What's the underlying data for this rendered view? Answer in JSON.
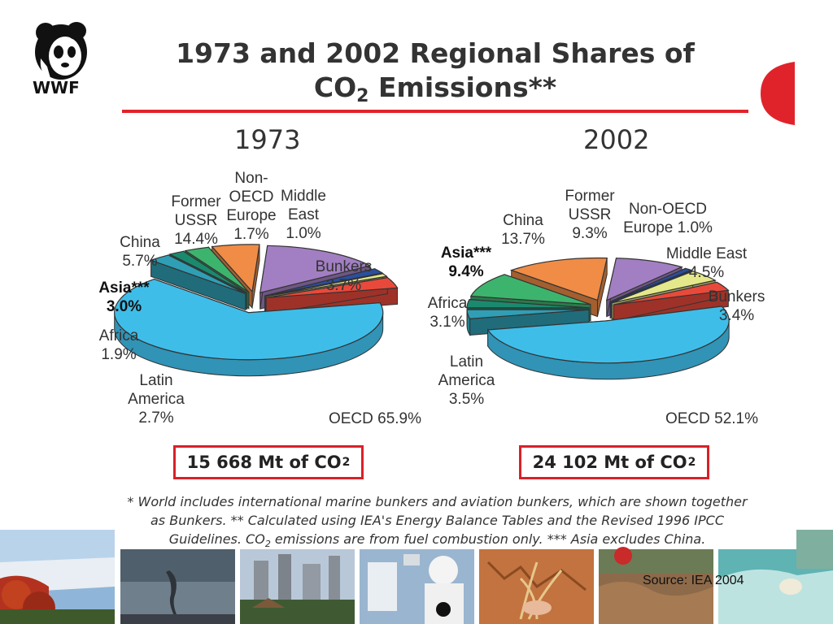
{
  "title_line1": "1973 and 2002 Regional Shares of",
  "title_line2_pre": "CO",
  "title_line2_sub": "2",
  "title_line2_post": " Emissions**",
  "logo_text": "WWF",
  "footnote_line1": "* World includes international marine bunkers and aviation bunkers, which are shown together",
  "footnote_line2": "as Bunkers. ** Calculated using IEA's Energy Balance Tables and the Revised 1996 IPCC",
  "footnote_line3_pre": "Guidelines. CO",
  "footnote_line3_sub": "2",
  "footnote_line3_post": " emissions are from fuel combustion only. *** Asia excludes China.",
  "source": "Source: IEA 2004",
  "colors": {
    "oecd": "#3fbde9",
    "latin_america": "#2f9fb5",
    "africa": "#1a8a6e",
    "asia": "#3db46d",
    "china": "#f08c46",
    "former_ussr": "#a27fc2",
    "non_oecd_europe": "#2a4fa0",
    "middle_east": "#e4e88a",
    "bunkers": "#e9493b"
  },
  "chart_data": [
    {
      "type": "pie",
      "title": "1973",
      "total": {
        "pre": "15 668 Mt of CO",
        "sub": "2"
      },
      "slices": [
        {
          "label": "OECD 65.9%",
          "name": "OECD",
          "value": 65.9,
          "color_key": "oecd"
        },
        {
          "label": "Latin\nAmerica\n2.7%",
          "name": "Latin America",
          "value": 2.7,
          "color_key": "latin_america"
        },
        {
          "label": "Africa\n1.9%",
          "name": "Africa",
          "value": 1.9,
          "color_key": "africa"
        },
        {
          "label": "Asia***\n3.0%",
          "name": "Asia",
          "value": 3.0,
          "color_key": "asia"
        },
        {
          "label": "China\n5.7%",
          "name": "China",
          "value": 5.7,
          "color_key": "china"
        },
        {
          "label": "Former\nUSSR\n14.4%",
          "name": "Former USSR",
          "value": 14.4,
          "color_key": "former_ussr"
        },
        {
          "label": "Non-\nOECD\nEurope\n1.7%",
          "name": "Non-OECD Europe",
          "value": 1.7,
          "color_key": "non_oecd_europe"
        },
        {
          "label": "Middle\nEast\n1.0%",
          "name": "Middle East",
          "value": 1.0,
          "color_key": "middle_east"
        },
        {
          "label": "Bunkers 3.7%",
          "name": "Bunkers",
          "value": 3.7,
          "color_key": "bunkers"
        }
      ]
    },
    {
      "type": "pie",
      "title": "2002",
      "total": {
        "pre": "24 102 Mt of CO",
        "sub": "2"
      },
      "slices": [
        {
          "label": "OECD 52.1%",
          "name": "OECD",
          "value": 52.1,
          "color_key": "oecd"
        },
        {
          "label": "Latin\nAmerica\n3.5%",
          "name": "Latin America",
          "value": 3.5,
          "color_key": "latin_america"
        },
        {
          "label": "Africa\n3.1%",
          "name": "Africa",
          "value": 3.1,
          "color_key": "africa"
        },
        {
          "label": "Asia***\n9.4%",
          "name": "Asia",
          "value": 9.4,
          "color_key": "asia"
        },
        {
          "label": "China\n13.7%",
          "name": "China",
          "value": 13.7,
          "color_key": "china"
        },
        {
          "label": "Former\nUSSR\n9.3%",
          "name": "Former USSR",
          "value": 9.3,
          "color_key": "former_ussr"
        },
        {
          "label": "Non-OECD\nEurope 1.0%",
          "name": "Non-OECD Europe",
          "value": 1.0,
          "color_key": "non_oecd_europe"
        },
        {
          "label": "Middle East\n4.5%",
          "name": "Middle East",
          "value": 4.5,
          "color_key": "middle_east"
        },
        {
          "label": "Bunkers 3.4%",
          "name": "Bunkers",
          "value": 3.4,
          "color_key": "bunkers"
        }
      ]
    }
  ]
}
